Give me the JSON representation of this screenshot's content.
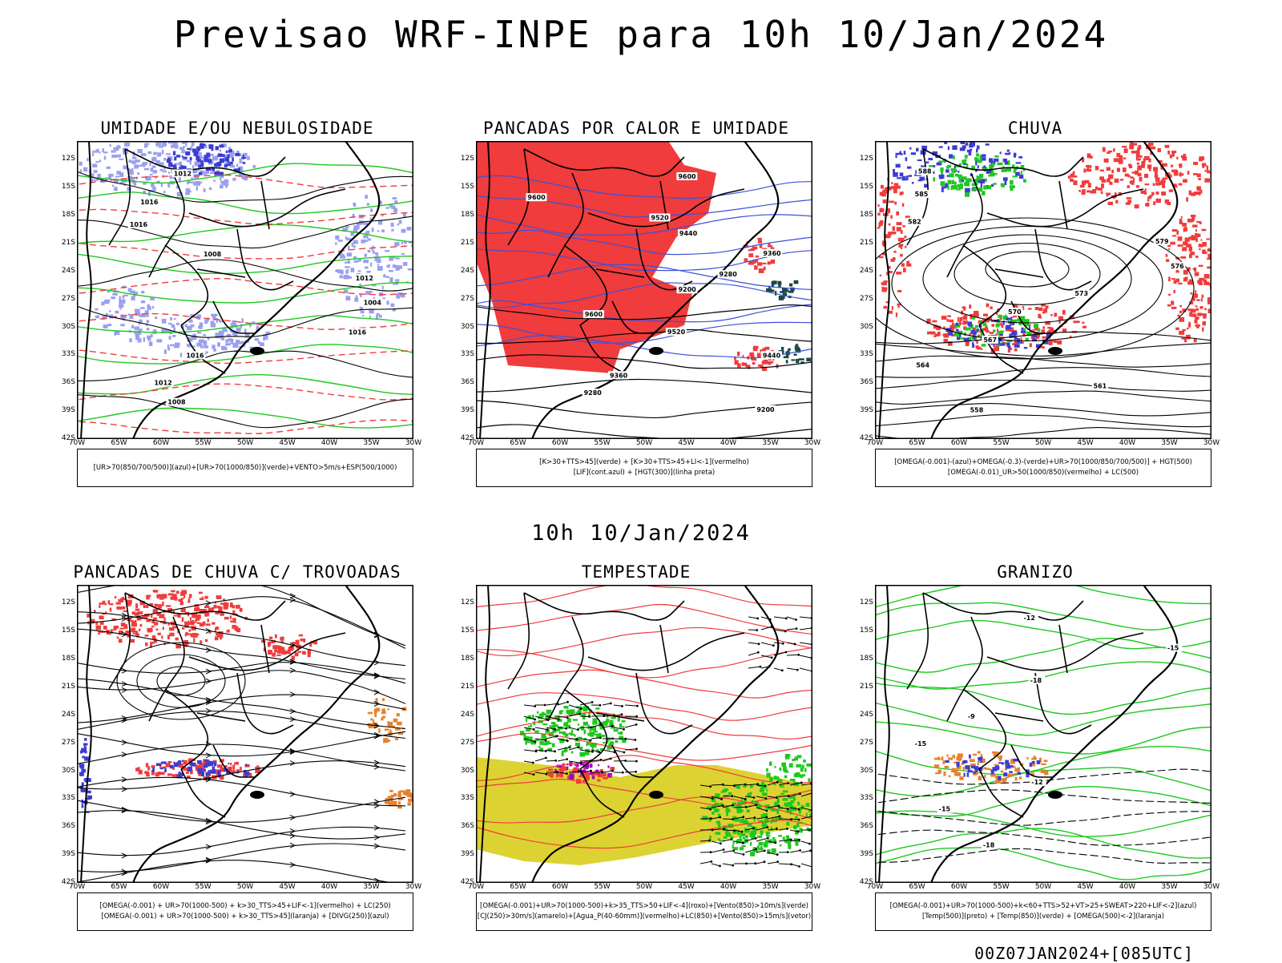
{
  "header": {
    "title": "Previsao WRF-INPE  para 10h 10/Jan/2024",
    "mid_title": "10h 10/Jan/2024",
    "footer": "00Z07JAN2024+[085UTC]"
  },
  "axes": {
    "lat_ticks": [
      "12S",
      "15S",
      "18S",
      "21S",
      "24S",
      "27S",
      "30S",
      "33S",
      "36S",
      "39S",
      "42S"
    ],
    "lon_ticks": [
      "70W",
      "65W",
      "60W",
      "55W",
      "50W",
      "45W",
      "40W",
      "35W",
      "30W"
    ]
  },
  "colors": {
    "humidity_blue": "#9aa0ee",
    "humidity_blue_dark": "#3c3cd2",
    "green": "#1fc81f",
    "red": "#f03c3c",
    "dark_teal": "#1e4646",
    "blue_line": "#3c50dc",
    "yellow": "#dcd232",
    "orange": "#e6822d",
    "purple": "#a000c8"
  },
  "panels": [
    {
      "id": "umidade",
      "title": "UMIDADE E/OU NEBULOSIDADE",
      "legend": [
        "[UR>70(850/700/500)](azul)+[UR>70(1000/850)](verde)+VENTO>5m/s+ESP(500/1000)"
      ],
      "contour_labels": [
        "1012",
        "1016",
        "1016",
        "1008",
        "1012",
        "1004",
        "1016",
        "1016",
        "1012",
        "1008"
      ]
    },
    {
      "id": "pancadas",
      "title": "PANCADAS POR CALOR E UMIDADE",
      "legend": [
        "[K>30+TTS>45](verde) + [K>30+TTS>45+LI<-1](vermelho)",
        "[LIF](cont.azul) + [HGT(300)](linha preta)"
      ],
      "contour_labels": [
        "9600",
        "9600",
        "9520",
        "9440",
        "9360",
        "9280",
        "9200",
        "9600",
        "9520",
        "9440",
        "9360",
        "9280",
        "9200"
      ]
    },
    {
      "id": "chuva",
      "title": "CHUVA",
      "legend": [
        "[OMEGA(-0.001)-(azul)+OMEGA(-0.3)-(verde)+UR>70(1000/850/700/500)] + HGT(500)",
        "[OMEGA(-0.01)_UR>50(1000/850)(vermelho) + LC(500)"
      ],
      "contour_labels": [
        "588",
        "585",
        "582",
        "579",
        "576",
        "573",
        "570",
        "567",
        "564",
        "561",
        "558"
      ]
    },
    {
      "id": "trovoadas",
      "title": "PANCADAS DE CHUVA C/ TROVOADAS",
      "legend": [
        "[OMEGA(-0.001) + UR>70(1000-500) + k>30_TTS>45+LIF<-1](vermelho) + LC(250)",
        "[OMEGA(-0.001) + UR>70(1000-500) + k>30_TTS>45](laranja) + [DIVG(250)](azul)"
      ]
    },
    {
      "id": "tempestade",
      "title": "TEMPESTADE",
      "legend": [
        "[OMEGA(-0.001)+UR>70(1000-500)+k>35_TTS>50+LIF<-4](roxo)+[Vento(850)>10m/s](verde)",
        "[CJ(250)>30m/s](amarelo)+[Agua_P(40-60mm)](vermelho)+LC(850)+[Vento(850)>15m/s](vetor)"
      ]
    },
    {
      "id": "granizo",
      "title": "GRANIZO",
      "legend": [
        "[OMEGA(-0.001)+UR>70(1000-500)+k<60+TTS>52+VT>25+SWEAT>220+LIF<-2](azul)",
        "[Temp(500)](preto) + [Temp(850)](verde) + [OMEGA(500)<-2](laranja)"
      ],
      "contour_labels": [
        "-12",
        "-15",
        "-18",
        "-9",
        "-15",
        "-12",
        "-15",
        "-18"
      ]
    }
  ]
}
